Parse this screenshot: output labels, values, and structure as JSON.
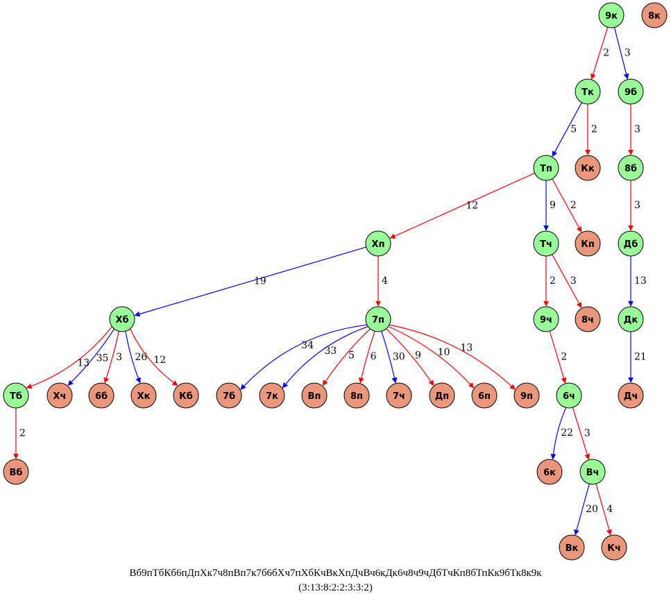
{
  "colors": {
    "inner_node": "#98fb98",
    "leaf_node": "#e9967a",
    "edge_red": "#ff0000",
    "edge_blue": "#0000ff",
    "stroke": "#000000"
  },
  "nodes": [
    {
      "id": "9k_root",
      "label": "9к",
      "kind": "inner"
    },
    {
      "id": "8k",
      "label": "8к",
      "kind": "leaf"
    },
    {
      "id": "Tk",
      "label": "Тк",
      "kind": "inner"
    },
    {
      "id": "9b",
      "label": "9б",
      "kind": "inner"
    },
    {
      "id": "Tp",
      "label": "Тп",
      "kind": "inner"
    },
    {
      "id": "Kk",
      "label": "Кк",
      "kind": "leaf"
    },
    {
      "id": "8b",
      "label": "8б",
      "kind": "inner"
    },
    {
      "id": "Xp",
      "label": "Хп",
      "kind": "inner"
    },
    {
      "id": "Tch",
      "label": "Тч",
      "kind": "inner"
    },
    {
      "id": "Kp",
      "label": "Кп",
      "kind": "leaf"
    },
    {
      "id": "Db",
      "label": "Дб",
      "kind": "inner"
    },
    {
      "id": "Xb",
      "label": "Хб",
      "kind": "inner"
    },
    {
      "id": "7p",
      "label": "7п",
      "kind": "inner"
    },
    {
      "id": "9ch",
      "label": "9ч",
      "kind": "inner"
    },
    {
      "id": "8ch",
      "label": "8ч",
      "kind": "leaf"
    },
    {
      "id": "Dk",
      "label": "Дк",
      "kind": "inner"
    },
    {
      "id": "Tb",
      "label": "Тб",
      "kind": "inner"
    },
    {
      "id": "Xch",
      "label": "Хч",
      "kind": "leaf"
    },
    {
      "id": "6b",
      "label": "6б",
      "kind": "leaf"
    },
    {
      "id": "Xk",
      "label": "Хк",
      "kind": "leaf"
    },
    {
      "id": "Kb",
      "label": "Кб",
      "kind": "leaf"
    },
    {
      "id": "7b",
      "label": "7б",
      "kind": "leaf"
    },
    {
      "id": "7k",
      "label": "7к",
      "kind": "leaf"
    },
    {
      "id": "Vp",
      "label": "Вп",
      "kind": "leaf"
    },
    {
      "id": "8p",
      "label": "8п",
      "kind": "leaf"
    },
    {
      "id": "7ch",
      "label": "7ч",
      "kind": "leaf"
    },
    {
      "id": "Dp",
      "label": "Дп",
      "kind": "leaf"
    },
    {
      "id": "6p",
      "label": "6п",
      "kind": "leaf"
    },
    {
      "id": "9p",
      "label": "9п",
      "kind": "leaf"
    },
    {
      "id": "6ch",
      "label": "6ч",
      "kind": "inner"
    },
    {
      "id": "Dch",
      "label": "Дч",
      "kind": "leaf"
    },
    {
      "id": "Vb",
      "label": "Вб",
      "kind": "leaf"
    },
    {
      "id": "6k",
      "label": "6к",
      "kind": "leaf"
    },
    {
      "id": "Vch",
      "label": "Вч",
      "kind": "inner"
    },
    {
      "id": "Vk",
      "label": "Вк",
      "kind": "leaf"
    },
    {
      "id": "Kch",
      "label": "Кч",
      "kind": "leaf"
    }
  ],
  "edges": [
    {
      "from": "9k_root",
      "to": "Tk",
      "label": "2",
      "color": "red"
    },
    {
      "from": "9k_root",
      "to": "9b",
      "label": "3",
      "color": "blue"
    },
    {
      "from": "Tk",
      "to": "Tp",
      "label": "5",
      "color": "blue"
    },
    {
      "from": "Tk",
      "to": "Kk",
      "label": "2",
      "color": "red"
    },
    {
      "from": "9b",
      "to": "8b",
      "label": "3",
      "color": "red"
    },
    {
      "from": "8b",
      "to": "Db",
      "label": "3",
      "color": "red"
    },
    {
      "from": "Db",
      "to": "Dk",
      "label": "13",
      "color": "blue"
    },
    {
      "from": "Dk",
      "to": "Dch",
      "label": "21",
      "color": "blue"
    },
    {
      "from": "Tp",
      "to": "Xp",
      "label": "12",
      "color": "red"
    },
    {
      "from": "Tp",
      "to": "Tch",
      "label": "9",
      "color": "blue"
    },
    {
      "from": "Tp",
      "to": "Kp",
      "label": "2",
      "color": "red"
    },
    {
      "from": "Tch",
      "to": "9ch",
      "label": "2",
      "color": "red"
    },
    {
      "from": "Tch",
      "to": "8ch",
      "label": "3",
      "color": "red"
    },
    {
      "from": "9ch",
      "to": "6ch",
      "label": "2",
      "color": "red"
    },
    {
      "from": "6ch",
      "to": "6k",
      "label": "22",
      "color": "blue"
    },
    {
      "from": "6ch",
      "to": "Vch",
      "label": "3",
      "color": "red"
    },
    {
      "from": "Vch",
      "to": "Vk",
      "label": "20",
      "color": "blue"
    },
    {
      "from": "Vch",
      "to": "Kch",
      "label": "4",
      "color": "red"
    },
    {
      "from": "Xp",
      "to": "Xb",
      "label": "19",
      "color": "blue"
    },
    {
      "from": "Xp",
      "to": "7p",
      "label": "4",
      "color": "red"
    },
    {
      "from": "Xb",
      "to": "Tb",
      "label": "13",
      "color": "red"
    },
    {
      "from": "Xb",
      "to": "Xch",
      "label": "35",
      "color": "blue"
    },
    {
      "from": "Xb",
      "to": "6b",
      "label": "3",
      "color": "red"
    },
    {
      "from": "Xb",
      "to": "Xk",
      "label": "26",
      "color": "blue"
    },
    {
      "from": "Xb",
      "to": "Kb",
      "label": "12",
      "color": "red"
    },
    {
      "from": "Tb",
      "to": "Vb",
      "label": "2",
      "color": "red"
    },
    {
      "from": "7p",
      "to": "7b",
      "label": "34",
      "color": "blue"
    },
    {
      "from": "7p",
      "to": "7k",
      "label": "33",
      "color": "blue"
    },
    {
      "from": "7p",
      "to": "Vp",
      "label": "5",
      "color": "red"
    },
    {
      "from": "7p",
      "to": "8p",
      "label": "6",
      "color": "red"
    },
    {
      "from": "7p",
      "to": "7ch",
      "label": "30",
      "color": "blue"
    },
    {
      "from": "7p",
      "to": "Dp",
      "label": "9",
      "color": "red"
    },
    {
      "from": "7p",
      "to": "6p",
      "label": "10",
      "color": "red"
    },
    {
      "from": "7p",
      "to": "9p",
      "label": "13",
      "color": "red"
    }
  ],
  "caption": {
    "line1": "Вб9пТбКб6пДпХк7ч8пВп7к7б6бХч7пХбКчВкХпДчВч6кДк6ч8ч9чДбТчКп8бТпКк9бТк8к9к",
    "line2": "(3:13:8:2:2:3:3:2)"
  }
}
